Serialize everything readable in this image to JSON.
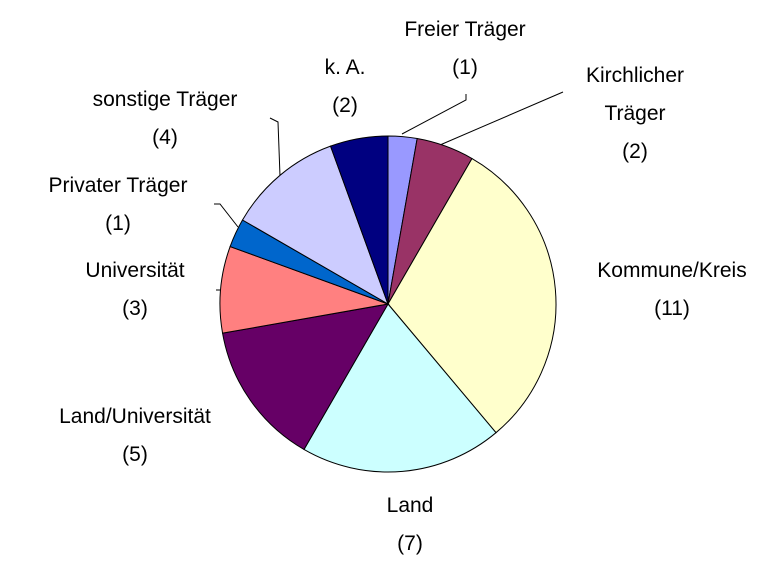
{
  "chart_data": {
    "type": "pie",
    "categories": [
      "Freier Träger",
      "Kirchlicher Träger",
      "Kommune/Kreis",
      "Land",
      "Land/Universität",
      "Universität",
      "Privater Träger",
      "sonstige Träger",
      "k. A."
    ],
    "values": [
      1,
      2,
      11,
      7,
      5,
      3,
      1,
      4,
      2
    ],
    "value_labels": [
      "(1)",
      "(2)",
      "(11)",
      "(7)",
      "(5)",
      "(3)",
      "(1)",
      "(4)",
      "(2)"
    ],
    "colors": [
      "#9999ff",
      "#993366",
      "#ffffcc",
      "#ccffff",
      "#660066",
      "#ff8080",
      "#0066cc",
      "#ccccff",
      "#000080"
    ]
  }
}
